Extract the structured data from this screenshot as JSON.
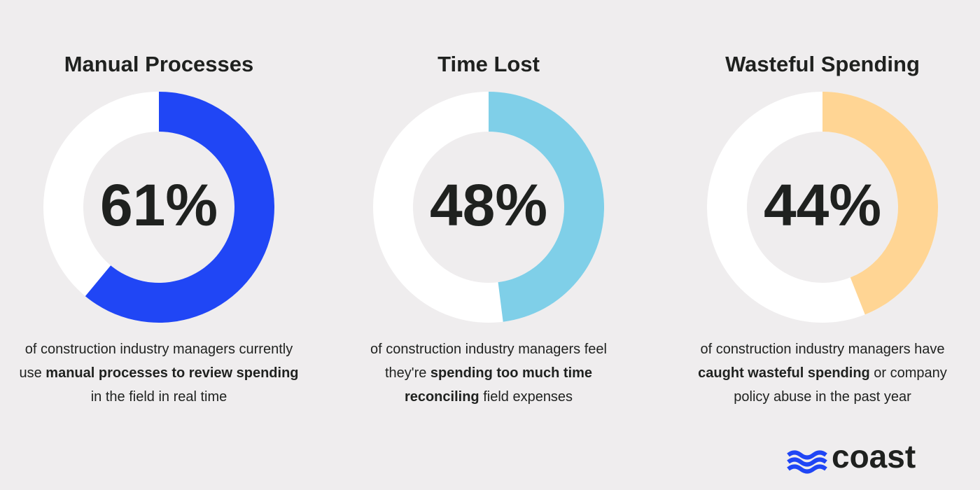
{
  "chart_data": [
    {
      "type": "donut",
      "title": "Manual Processes",
      "values": [
        61
      ],
      "value_labels": [
        "61%"
      ],
      "color": "#2046f5",
      "caption": [
        {
          "text": "of construction industry managers currently use ",
          "bold": false
        },
        {
          "text": "manual processes to review spending",
          "bold": true
        },
        {
          "text": " in the field in real time",
          "bold": false
        }
      ]
    },
    {
      "type": "donut",
      "title": "Time Lost",
      "values": [
        48
      ],
      "value_labels": [
        "48%"
      ],
      "color": "#7fcfe8",
      "caption": [
        {
          "text": "of construction industry managers feel they're ",
          "bold": false
        },
        {
          "text": "spending too much time reconciling",
          "bold": true
        },
        {
          "text": " field expenses",
          "bold": false
        }
      ]
    },
    {
      "type": "donut",
      "title": "Wasteful Spending",
      "values": [
        44
      ],
      "value_labels": [
        "44%"
      ],
      "color": "#ffd594",
      "caption": [
        {
          "text": "of construction industry managers have ",
          "bold": false
        },
        {
          "text": "caught wasteful spending",
          "bold": true
        },
        {
          "text": " or company policy abuse in the past year",
          "bold": false
        }
      ]
    }
  ],
  "logo": "coast"
}
